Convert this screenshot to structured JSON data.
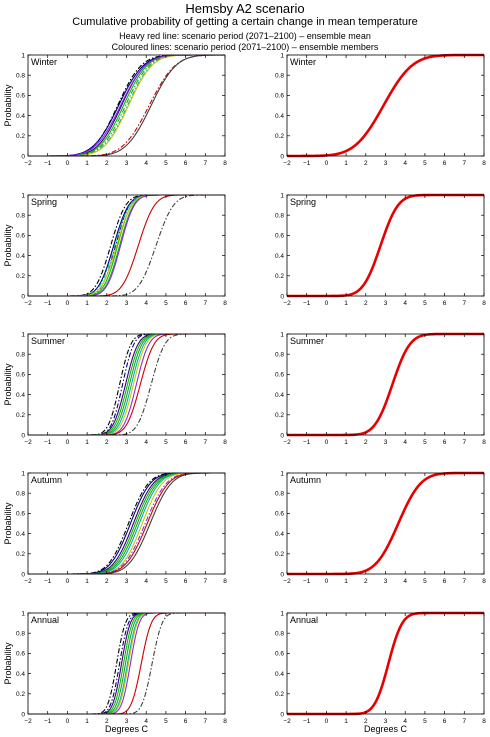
{
  "header": {
    "title": "Hemsby A2 scenario",
    "subtitle": "Cumulative probability of getting a certain change in mean temperature",
    "note_heavy": "Heavy red line: scenario period (2071–2100) – ensemble mean",
    "note_coloured": "Coloured lines: scenario period (2071–2100) – ensemble members"
  },
  "chart_data": {
    "type": "line",
    "layout": "5 rows x 2 columns; left column = ensemble members, right column = ensemble mean",
    "xlabel": "Degrees C",
    "ylabel": "Probability",
    "xlim": [
      -2,
      8
    ],
    "ylim": [
      0,
      1
    ],
    "xticks": [
      -2,
      -1,
      0,
      1,
      2,
      3,
      4,
      5,
      6,
      7,
      8
    ],
    "yticks": [
      0,
      0.2,
      0.4,
      0.6,
      0.8,
      1
    ],
    "grid": false,
    "colors": {
      "ensemble_mean": "#e60000",
      "members": [
        "#000000",
        "#000080",
        "#3a0070",
        "#00c000",
        "#2a9d2a",
        "#00b0b0",
        "#c8c800",
        "#8b2be2",
        "#cc0000",
        "#404040"
      ]
    },
    "seasons": [
      {
        "label": "Winter",
        "ensemble_mean": {
          "median": 2.9,
          "spread": 1.15
        },
        "members": [
          {
            "median": 2.55,
            "spread": 0.95,
            "style": "dashdot"
          },
          {
            "median": 2.6,
            "spread": 1.0,
            "style": "solid"
          },
          {
            "median": 2.75,
            "spread": 0.95,
            "style": "solid"
          },
          {
            "median": 2.85,
            "spread": 0.95,
            "style": "solid"
          },
          {
            "median": 2.95,
            "spread": 0.95,
            "style": "dashdot"
          },
          {
            "median": 3.05,
            "spread": 0.95,
            "style": "dashdot"
          },
          {
            "median": 3.1,
            "spread": 0.95,
            "style": "solid"
          },
          {
            "median": 2.7,
            "spread": 1.0,
            "style": "solid"
          },
          {
            "median": 4.15,
            "spread": 1.05,
            "style": "dashdot"
          },
          {
            "median": 4.25,
            "spread": 1.0,
            "style": "solid"
          }
        ]
      },
      {
        "label": "Spring",
        "ensemble_mean": {
          "median": 2.75,
          "spread": 0.7
        },
        "members": [
          {
            "median": 2.2,
            "spread": 0.6,
            "style": "dashdot"
          },
          {
            "median": 2.35,
            "spread": 0.6,
            "style": "solid"
          },
          {
            "median": 2.45,
            "spread": 0.55,
            "style": "dashdot"
          },
          {
            "median": 2.55,
            "spread": 0.55,
            "style": "solid"
          },
          {
            "median": 2.65,
            "spread": 0.55,
            "style": "solid"
          },
          {
            "median": 2.4,
            "spread": 0.6,
            "style": "dashdot"
          },
          {
            "median": 2.5,
            "spread": 0.6,
            "style": "solid"
          },
          {
            "median": 2.7,
            "spread": 0.55,
            "style": "solid"
          },
          {
            "median": 3.6,
            "spread": 0.65,
            "style": "solid"
          },
          {
            "median": 4.5,
            "spread": 0.7,
            "style": "dashdot"
          }
        ]
      },
      {
        "label": "Summer",
        "ensemble_mean": {
          "median": 3.35,
          "spread": 0.7
        },
        "members": [
          {
            "median": 2.65,
            "spread": 0.45,
            "style": "dashdot"
          },
          {
            "median": 2.8,
            "spread": 0.45,
            "style": "dashdot"
          },
          {
            "median": 2.95,
            "spread": 0.5,
            "style": "solid"
          },
          {
            "median": 3.05,
            "spread": 0.5,
            "style": "solid"
          },
          {
            "median": 3.15,
            "spread": 0.5,
            "style": "solid"
          },
          {
            "median": 3.25,
            "spread": 0.5,
            "style": "solid"
          },
          {
            "median": 3.35,
            "spread": 0.5,
            "style": "solid"
          },
          {
            "median": 3.5,
            "spread": 0.5,
            "style": "solid"
          },
          {
            "median": 3.7,
            "spread": 0.55,
            "style": "solid"
          },
          {
            "median": 4.25,
            "spread": 0.55,
            "style": "dashdot"
          }
        ]
      },
      {
        "label": "Autumn",
        "ensemble_mean": {
          "median": 3.65,
          "spread": 0.9
        },
        "members": [
          {
            "median": 3.1,
            "spread": 0.8,
            "style": "dashdot"
          },
          {
            "median": 3.2,
            "spread": 0.8,
            "style": "solid"
          },
          {
            "median": 3.35,
            "spread": 0.8,
            "style": "solid"
          },
          {
            "median": 3.45,
            "spread": 0.8,
            "style": "solid"
          },
          {
            "median": 3.55,
            "spread": 0.8,
            "style": "solid"
          },
          {
            "median": 3.65,
            "spread": 0.8,
            "style": "solid"
          },
          {
            "median": 3.8,
            "spread": 0.8,
            "style": "solid"
          },
          {
            "median": 3.95,
            "spread": 0.85,
            "style": "dashdot"
          },
          {
            "median": 4.05,
            "spread": 0.85,
            "style": "solid"
          },
          {
            "median": 4.2,
            "spread": 0.85,
            "style": "solid"
          }
        ]
      },
      {
        "label": "Annual",
        "ensemble_mean": {
          "median": 3.15,
          "spread": 0.55
        },
        "members": [
          {
            "median": 2.5,
            "spread": 0.35,
            "style": "dashdot"
          },
          {
            "median": 2.65,
            "spread": 0.35,
            "style": "dashdot"
          },
          {
            "median": 2.75,
            "spread": 0.35,
            "style": "solid"
          },
          {
            "median": 2.85,
            "spread": 0.35,
            "style": "solid"
          },
          {
            "median": 2.95,
            "spread": 0.35,
            "style": "solid"
          },
          {
            "median": 3.05,
            "spread": 0.35,
            "style": "solid"
          },
          {
            "median": 3.1,
            "spread": 0.35,
            "style": "solid"
          },
          {
            "median": 3.2,
            "spread": 0.35,
            "style": "solid"
          },
          {
            "median": 3.75,
            "spread": 0.4,
            "style": "solid"
          },
          {
            "median": 4.3,
            "spread": 0.4,
            "style": "dashdot"
          }
        ]
      }
    ]
  }
}
